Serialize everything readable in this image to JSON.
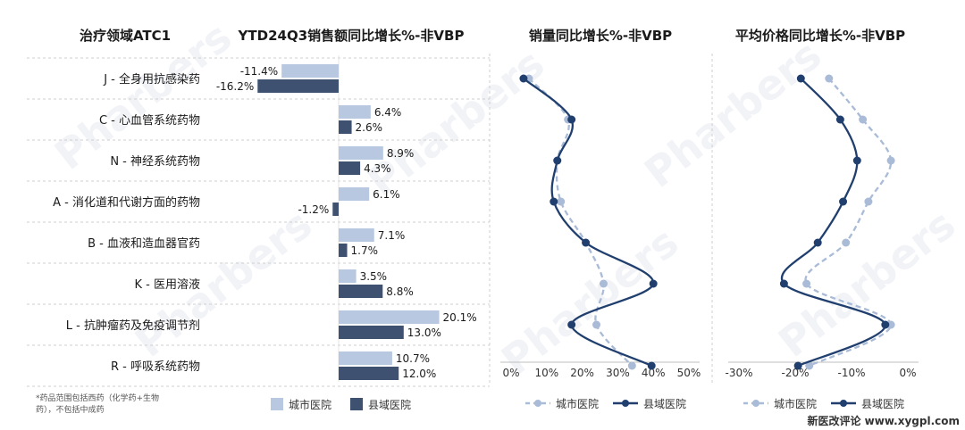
{
  "headers": {
    "category": "治疗领域ATC1",
    "sales": "YTD24Q3销售额同比增长%-非VBP",
    "volume": "销量同比增长%-非VBP",
    "price": "平均价格同比增长%-非VBP"
  },
  "footnote_lines": [
    "*药品范围包括西药（化学药+生物",
    "药），不包括中成药"
  ],
  "watermark": "Pharbers",
  "source_mark": "新医改评论 www.xygpl.com",
  "colors": {
    "city": "#b8c8e0",
    "county": "#3e5170",
    "city_line": "#a9bbd7",
    "county_line": "#203f6e"
  },
  "chart_data": [
    {
      "type": "bar",
      "title": "YTD24Q3销售额同比增长%-非VBP",
      "categories": [
        "J - 全身用抗感染药",
        "C - 心血管系统药物",
        "N - 神经系统药物",
        "A - 消化道和代谢方面的药物",
        "B - 血液和造血器官药",
        "K - 医用溶液",
        "L - 抗肿瘤药及免疫调节剂",
        "R - 呼吸系统药物"
      ],
      "series": [
        {
          "name": "城市医院",
          "values": [
            -11.4,
            6.4,
            8.9,
            6.1,
            7.1,
            3.5,
            20.1,
            10.7
          ],
          "labels": [
            "-11.4%",
            "6.4%",
            "8.9%",
            "6.1%",
            "7.1%",
            "3.5%",
            "20.1%",
            "10.7%"
          ]
        },
        {
          "name": "县域医院",
          "values": [
            -16.2,
            2.6,
            4.3,
            -1.2,
            1.7,
            8.8,
            13.0,
            12.0
          ],
          "labels": [
            "-16.2%",
            "2.6%",
            "4.3%",
            "-1.2%",
            "1.7%",
            "8.8%",
            "13.0%",
            "12.0%"
          ]
        }
      ]
    },
    {
      "type": "line",
      "title": "销量同比增长%-非VBP",
      "xlim": [
        0,
        50
      ],
      "xticks": [
        "0%",
        "10%",
        "20%",
        "30%",
        "40%",
        "50%"
      ],
      "tick_values": [
        0,
        10,
        20,
        30,
        40,
        50
      ],
      "series": [
        {
          "name": "城市医院",
          "values": [
            5,
            16,
            13,
            14,
            21,
            26,
            24,
            34
          ]
        },
        {
          "name": "县域医院",
          "values": [
            3.5,
            17,
            13,
            12,
            21,
            40,
            17,
            39.5
          ]
        }
      ]
    },
    {
      "type": "line",
      "title": "平均价格同比增长%-非VBP",
      "xlim": [
        -30,
        0
      ],
      "xticks": [
        "-30%",
        "-20%",
        "-10%",
        "0%"
      ],
      "tick_values": [
        -30,
        -20,
        -10,
        0
      ],
      "series": [
        {
          "name": "城市医院",
          "values": [
            -14,
            -8,
            -3,
            -7,
            -11,
            -18,
            -3,
            -17.5
          ]
        },
        {
          "name": "县域医院",
          "values": [
            -19,
            -12,
            -9,
            -11.5,
            -16,
            -22,
            -4,
            -19.5
          ]
        }
      ]
    }
  ]
}
